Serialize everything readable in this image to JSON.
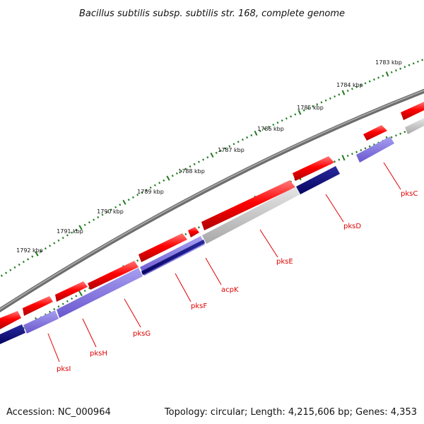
{
  "title": "Bacillus subtilis subsp. subtilis str. 168, complete genome",
  "footer": {
    "accession": "Accession: NC_000964",
    "summary": "Topology: circular; Length: 4,215,606 bp; Genes: 4,353"
  },
  "colors": {
    "backbone": "#7a7a7a",
    "tick": "#1e7a1e",
    "forward_cds": "#ff0000",
    "reverse_cds": "#7b68d8",
    "reverse_cds_dark": "#0a0a78",
    "other_feature": "#c8c8c8",
    "label": "#e00000"
  },
  "kbp_labels": [
    "1783 kbp",
    "1784 kbp",
    "1785 kbp",
    "1786 kbp",
    "1787 kbp",
    "1788 kbp",
    "1789 kbp",
    "1790 kbp",
    "1791 kbp",
    "1792 kbp"
  ],
  "gene_labels": [
    "pksC",
    "pksD",
    "pksE",
    "acpK",
    "pksF",
    "pksG",
    "pksH",
    "pksI"
  ]
}
